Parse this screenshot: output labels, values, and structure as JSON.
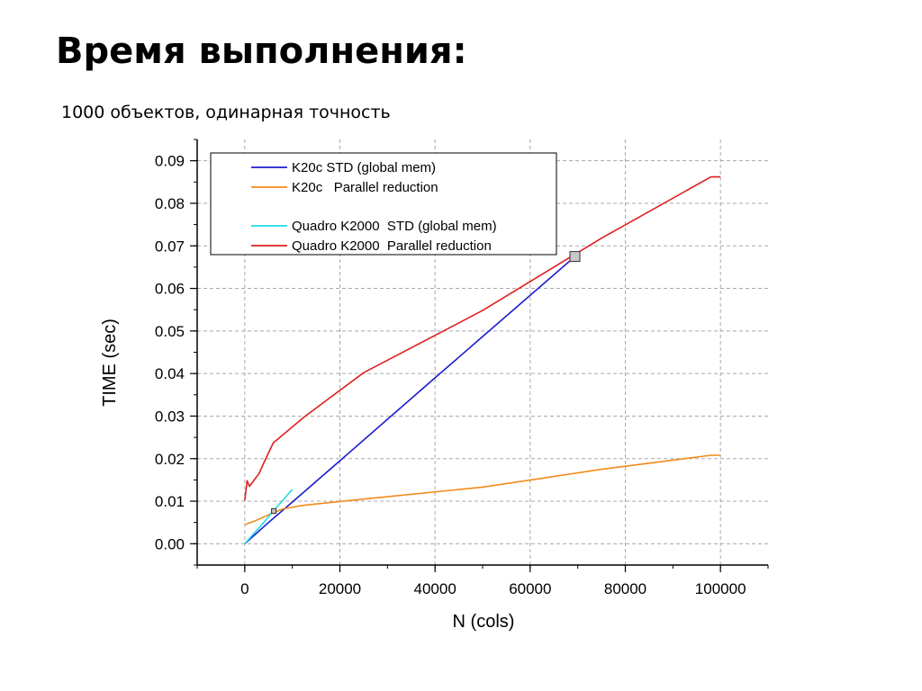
{
  "slide": {
    "title": "Время выполнения:",
    "subtitle": "1000 объектов, одинарная точность"
  },
  "chart_data": {
    "type": "line",
    "xlabel": "N (cols)",
    "ylabel": "TIME (sec)",
    "xlim": [
      -10000,
      110000
    ],
    "ylim": [
      -0.005,
      0.095
    ],
    "xticks": [
      0,
      20000,
      40000,
      60000,
      80000,
      100000
    ],
    "yticks": [
      0.0,
      0.01,
      0.02,
      0.03,
      0.04,
      0.05,
      0.06,
      0.07,
      0.08,
      0.09
    ],
    "xtick_labels": [
      "0",
      "20000",
      "40000",
      "60000",
      "80000",
      "100000"
    ],
    "ytick_labels": [
      "0.00",
      "0.01",
      "0.02",
      "0.03",
      "0.04",
      "0.05",
      "0.06",
      "0.07",
      "0.08",
      "0.09"
    ],
    "grid": true,
    "legend_position": "top-left",
    "series": [
      {
        "name": "K20c STD (global mem)",
        "color": "#1c1ccc",
        "x": [
          0,
          500,
          1000,
          2000,
          5000,
          10000,
          20000,
          40000,
          69400
        ],
        "y": [
          0.0,
          0.0005,
          0.001,
          0.002,
          0.005,
          0.0098,
          0.0195,
          0.039,
          0.0675
        ]
      },
      {
        "name": "K20c   Parallel reduction",
        "color": "#f28a1a",
        "x": [
          0,
          2000,
          5000,
          8000,
          12000,
          25000,
          50000,
          75000,
          98000,
          100000
        ],
        "y": [
          0.0045,
          0.0053,
          0.0068,
          0.0082,
          0.009,
          0.0105,
          0.0133,
          0.0175,
          0.0208,
          0.0208
        ]
      },
      {
        "name": "Quadro K2000  STD (global mem)",
        "color": "#22dbe6",
        "x": [
          0,
          2000,
          4000,
          6000,
          8000,
          10000
        ],
        "y": [
          0.0,
          0.0025,
          0.005,
          0.0077,
          0.0102,
          0.0128
        ]
      },
      {
        "name": "Quadro K2000  Parallel reduction",
        "color": "#e01e1e",
        "x": [
          0,
          500,
          1000,
          2000,
          3000,
          4000,
          6000,
          12500,
          25000,
          50000,
          75000,
          98000,
          100000
        ],
        "y": [
          0.0102,
          0.0148,
          0.0135,
          0.015,
          0.0165,
          0.019,
          0.0237,
          0.0298,
          0.0402,
          0.0548,
          0.0718,
          0.0862,
          0.0862
        ]
      }
    ],
    "markers": [
      {
        "name": "intersection-k20c",
        "x": 69400,
        "y": 0.0675,
        "color": "#c8c8c8"
      },
      {
        "name": "intersection-quadro",
        "x": 6100,
        "y": 0.0077,
        "color": "#c8c8c8"
      }
    ]
  }
}
